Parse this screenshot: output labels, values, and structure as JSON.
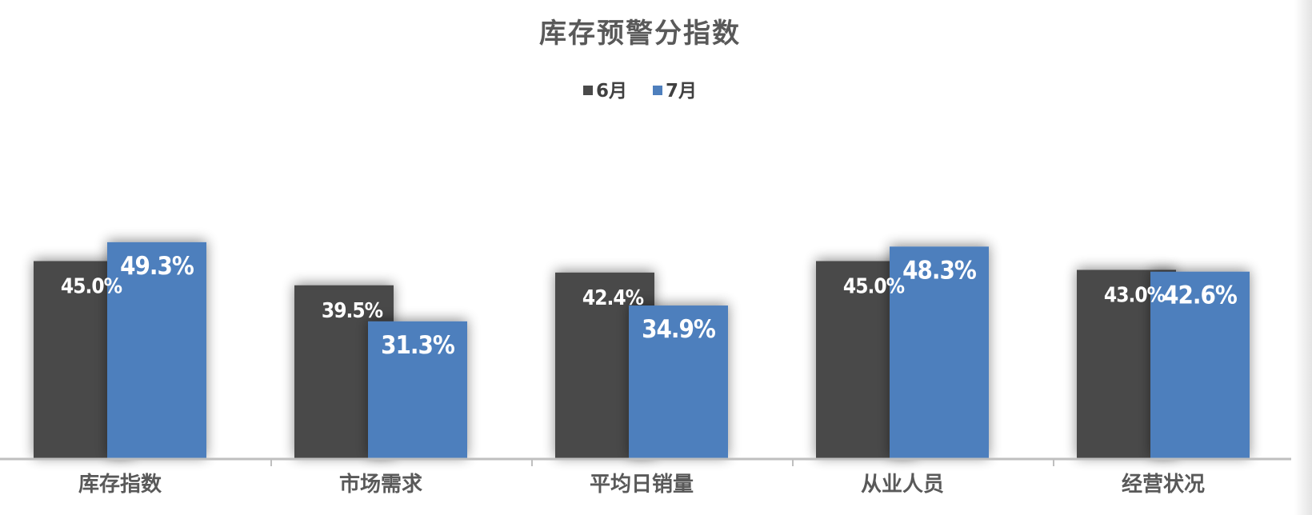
{
  "chart_data": {
    "type": "bar",
    "title": "库存预警分指数",
    "categories": [
      "库存指数",
      "市场需求",
      "平均日销量",
      "从业人员",
      "经营状况"
    ],
    "series": [
      {
        "name": "6月",
        "color": "#4a4a4a",
        "values": [
          45.0,
          39.5,
          42.4,
          45.0,
          43.0
        ],
        "labels": [
          "45.0%",
          "39.5%",
          "42.4%",
          "45.0%",
          "43.0%"
        ]
      },
      {
        "name": "7月",
        "color": "#4e7fbd",
        "values": [
          49.3,
          31.3,
          34.9,
          48.3,
          42.6
        ],
        "labels": [
          "49.3%",
          "31.3%",
          "34.9%",
          "48.3%",
          "42.6%"
        ]
      }
    ],
    "unit": "%",
    "legend_position": "top-center",
    "grid": false
  }
}
